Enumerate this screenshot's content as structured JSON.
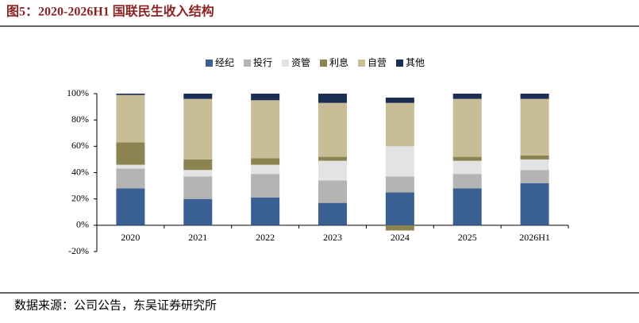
{
  "chart_data": {
    "type": "stacked_bar",
    "title": "图5：2020-2026H1 国联民生收入结构",
    "source": "数据来源：公司公告，东吴证券研究所",
    "categories": [
      "2020",
      "2021",
      "2022",
      "2023",
      "2024",
      "2025",
      "2026H1"
    ],
    "series": [
      {
        "name": "经纪",
        "color": "#3a5f93",
        "values": [
          28,
          20,
          21,
          17,
          25,
          28,
          32
        ]
      },
      {
        "name": "投行",
        "color": "#b4b4b4",
        "values": [
          15,
          17,
          18,
          17,
          12,
          11,
          10
        ]
      },
      {
        "name": "资管",
        "color": "#e3e3e3",
        "values": [
          3,
          5,
          7,
          15,
          23,
          10,
          8
        ]
      },
      {
        "name": "利息",
        "color": "#8c8450",
        "values": [
          17,
          8,
          5,
          3,
          -4,
          3,
          3
        ]
      },
      {
        "name": "自营",
        "color": "#c8bd97",
        "values": [
          36,
          46,
          44,
          41,
          33,
          44,
          43
        ]
      },
      {
        "name": "其他",
        "color": "#1b2f55",
        "values": [
          1,
          4,
          5,
          7,
          4,
          4,
          4
        ]
      }
    ],
    "ylim": [
      -20,
      100
    ],
    "yticks": [
      {
        "value": -20,
        "label": "-20%"
      },
      {
        "value": 0,
        "label": "0%"
      },
      {
        "value": 20,
        "label": "20%"
      },
      {
        "value": 40,
        "label": "40%"
      },
      {
        "value": 60,
        "label": "60%"
      },
      {
        "value": 80,
        "label": "80%"
      },
      {
        "value": 100,
        "label": "100%"
      }
    ],
    "legend": "top"
  }
}
